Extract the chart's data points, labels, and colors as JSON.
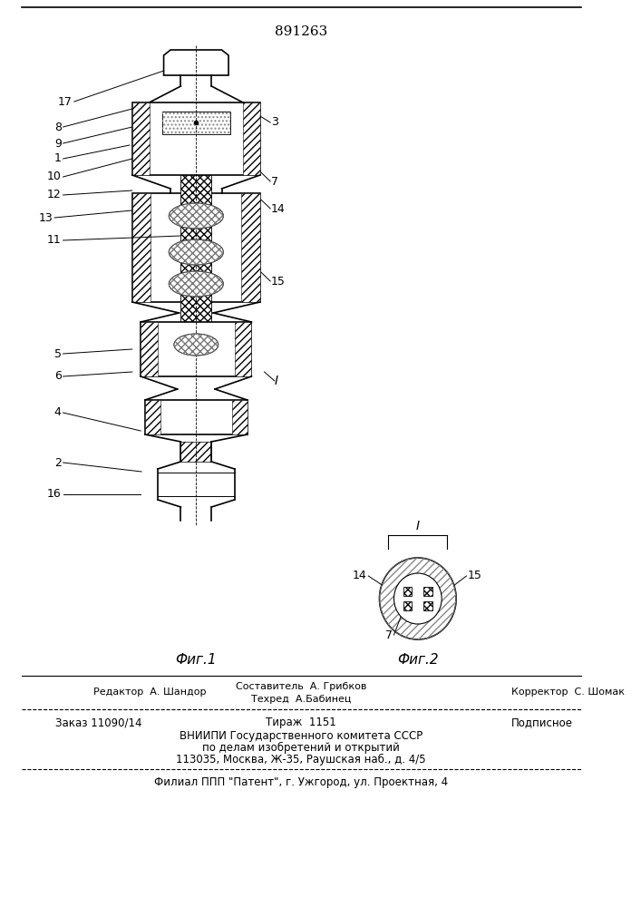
{
  "patent_number": "891263",
  "fig1_caption": "Фиг.1",
  "fig2_caption": "Фиг.2",
  "section_label": "I",
  "editor_label": "Редактор  А. Шандор",
  "composer_label": "Составитель  А. Грибков",
  "techred_label": "Техред  А.Бабинец",
  "corrector_label": "Корректор  С. Шомак",
  "order_label": "Заказ 11090/14",
  "tirazh_label": "Тираж  1151",
  "podpisnoe_label": "Подписное",
  "vniiipi_line1": "ВНИИПИ Государственного комитета СССР",
  "vniiipi_line2": "по делам изобретений и открытий",
  "vniiipi_line3": "113035, Москва, Ж-35, Раушская наб., д. 4/5",
  "filial_label": "Филиал ППП \"Патент\", г. Ужгород, ул. Проектная, 4",
  "bg_color": "#ffffff",
  "line_color": "#000000",
  "hatch_color": "#555555"
}
